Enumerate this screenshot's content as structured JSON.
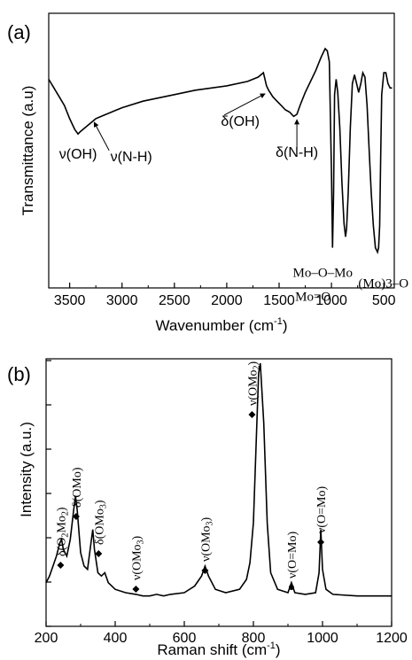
{
  "chart_data": [
    {
      "panel_label": "(a)",
      "type": "line",
      "xlabel": "Wavenumber (cm",
      "xlabel_sup": "-1",
      "xlabel_tail": ")",
      "ylabel": "Transmittance (a.u)",
      "xlim": [
        3700,
        400
      ],
      "x_reversed": true,
      "y_ticks_shown": false,
      "xticks": [
        3500,
        3000,
        2500,
        2000,
        1500,
        1000,
        500
      ],
      "series": [
        {
          "x": [
            3700,
            3650,
            3600,
            3550,
            3500,
            3450,
            3420,
            3400,
            3350,
            3300,
            3250,
            3200,
            3100,
            3000,
            2800,
            2500,
            2300,
            2000,
            1800,
            1700,
            1650,
            1620,
            1600,
            1560,
            1520,
            1480,
            1440,
            1400,
            1360,
            1330,
            1300,
            1250,
            1200,
            1150,
            1100,
            1060,
            1040,
            1020,
            1000,
            990,
            980,
            970,
            955,
            940,
            920,
            900,
            880,
            865,
            855,
            840,
            820,
            800,
            780,
            760,
            740,
            720,
            700,
            680,
            660,
            640,
            620,
            600,
            580,
            560,
            550,
            540,
            530,
            520,
            500,
            480,
            460,
            440,
            420
          ],
          "y": [
            0.82,
            0.78,
            0.74,
            0.7,
            0.64,
            0.59,
            0.57,
            0.58,
            0.6,
            0.62,
            0.64,
            0.65,
            0.67,
            0.69,
            0.72,
            0.75,
            0.77,
            0.79,
            0.81,
            0.83,
            0.85,
            0.79,
            0.77,
            0.74,
            0.72,
            0.7,
            0.68,
            0.67,
            0.65,
            0.66,
            0.7,
            0.76,
            0.81,
            0.86,
            0.92,
            0.96,
            0.95,
            0.9,
            0.4,
            0.05,
            0.3,
            0.75,
            0.82,
            0.76,
            0.6,
            0.35,
            0.16,
            0.1,
            0.14,
            0.3,
            0.6,
            0.8,
            0.84,
            0.8,
            0.76,
            0.8,
            0.85,
            0.83,
            0.7,
            0.5,
            0.3,
            0.15,
            0.05,
            0.03,
            0.05,
            0.15,
            0.45,
            0.75,
            0.85,
            0.85,
            0.8,
            0.78,
            0.78
          ]
        }
      ],
      "annotations": [
        {
          "text": "ν(OH)",
          "x": 3420,
          "y": 0.57,
          "font": "sans"
        },
        {
          "text": "ν(N-H)",
          "x": 3250,
          "y": 0.64,
          "font": "sans",
          "arrow": true
        },
        {
          "text": "δ(OH)",
          "x": 1600,
          "y": 0.77,
          "font": "sans",
          "arrow": true
        },
        {
          "text": "δ(N-H)",
          "x": 1330,
          "y": 0.66,
          "font": "sans",
          "arrow": true
        },
        {
          "text": "Mo=O",
          "x": 990,
          "y": 0.05,
          "font": "serif"
        },
        {
          "text": "Mo–O–Mo",
          "x": 865,
          "y": 0.1,
          "font": "serif"
        },
        {
          "text": "(Mo)3–O",
          "x": 560,
          "y": 0.03,
          "font": "serif"
        }
      ]
    },
    {
      "panel_label": "(b)",
      "type": "line",
      "xlabel": "Raman shift (cm",
      "xlabel_sup": "-1",
      "xlabel_tail": ")",
      "ylabel": "Intensity (a.u.)",
      "xlim": [
        200,
        1200
      ],
      "ylim": [
        0,
        1
      ],
      "y_ticks_shown": false,
      "xticks": [
        200,
        400,
        600,
        800,
        1000,
        1200
      ],
      "series": [
        {
          "x": [
            200,
            210,
            220,
            230,
            240,
            245,
            250,
            260,
            270,
            280,
            285,
            290,
            300,
            310,
            320,
            330,
            335,
            340,
            350,
            360,
            370,
            380,
            400,
            430,
            460,
            480,
            500,
            520,
            540,
            560,
            600,
            630,
            650,
            660,
            670,
            690,
            720,
            760,
            780,
            790,
            800,
            810,
            815,
            820,
            830,
            840,
            850,
            870,
            900,
            910,
            920,
            950,
            980,
            990,
            995,
            1000,
            1010,
            1030,
            1100,
            1200
          ],
          "y": [
            0.07,
            0.09,
            0.12,
            0.15,
            0.19,
            0.2,
            0.17,
            0.15,
            0.2,
            0.29,
            0.33,
            0.29,
            0.16,
            0.12,
            0.11,
            0.19,
            0.23,
            0.17,
            0.1,
            0.09,
            0.1,
            0.07,
            0.05,
            0.04,
            0.035,
            0.03,
            0.03,
            0.035,
            0.03,
            0.035,
            0.04,
            0.06,
            0.09,
            0.12,
            0.09,
            0.05,
            0.04,
            0.05,
            0.08,
            0.13,
            0.25,
            0.55,
            0.7,
            0.73,
            0.55,
            0.25,
            0.1,
            0.05,
            0.04,
            0.07,
            0.04,
            0.035,
            0.04,
            0.1,
            0.23,
            0.11,
            0.05,
            0.035,
            0.03,
            0.03
          ]
        }
      ],
      "annotations": [
        {
          "text": "δ(O",
          "sub1": "2",
          "mid": "Mo",
          "sub2": "2",
          "tail": ")",
          "x": 240
        },
        {
          "text": "δ(OMo)",
          "x": 283
        },
        {
          "text": "δ(OMo",
          "sub1": "3",
          "tail": ")",
          "x": 355
        },
        {
          "text": "ν(OMo",
          "sub1": "3",
          "tail": ")",
          "x": 460
        },
        {
          "text": "ν(OMo",
          "sub1": "3",
          "tail": ")",
          "x": 660
        },
        {
          "text": "ν(OMo",
          "sub1": "2",
          "tail": ")",
          "x": 815
        },
        {
          "text": "ν(O=Mo)",
          "x": 910
        },
        {
          "text": "ν(O=Mo)",
          "x": 995
        }
      ]
    }
  ]
}
